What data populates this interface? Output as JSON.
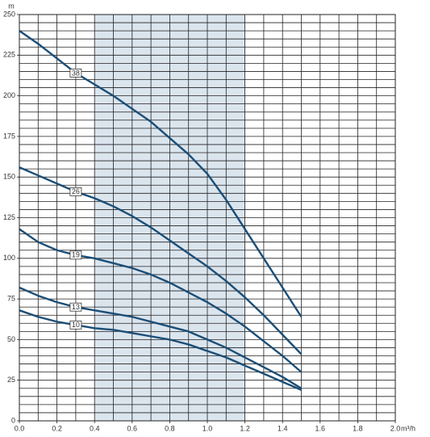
{
  "chart_data": {
    "type": "line",
    "y_unit": "m",
    "x_unit": "m³/h",
    "x": [
      0,
      0.1,
      0.2,
      0.3,
      0.4,
      0.5,
      0.6,
      0.7,
      0.8,
      0.9,
      1.0,
      1.1,
      1.2,
      1.3,
      1.4,
      1.5
    ],
    "series": [
      {
        "name": "38",
        "color": "#1b4e77",
        "values": [
          240,
          232,
          223,
          214,
          207,
          200,
          192,
          184,
          174,
          164,
          152,
          136,
          118,
          100,
          82,
          64
        ]
      },
      {
        "name": "26",
        "color": "#1b4e77",
        "values": [
          156,
          151,
          146,
          141,
          137,
          132,
          126,
          119,
          111,
          103,
          95,
          86,
          76,
          65,
          53,
          41
        ]
      },
      {
        "name": "19",
        "color": "#1b4e77",
        "values": [
          118,
          110,
          105,
          102,
          100,
          97,
          94,
          90,
          85,
          79,
          73,
          66,
          58,
          49,
          40,
          30
        ]
      },
      {
        "name": "13",
        "color": "#1b4e77",
        "values": [
          82,
          77,
          73,
          70,
          68,
          66,
          64,
          61,
          58,
          55,
          50,
          45,
          39,
          33,
          27,
          20
        ]
      },
      {
        "name": "10",
        "color": "#1b4e77",
        "values": [
          68,
          64,
          61,
          59,
          57,
          56,
          54,
          52,
          50,
          47,
          43,
          39,
          34,
          29,
          24,
          19
        ]
      }
    ],
    "xlim": [
      0,
      2.0
    ],
    "ylim": [
      0,
      250
    ],
    "xticks": [
      {
        "value": 0,
        "label": "0.0"
      },
      0.2,
      0.4,
      0.6,
      0.8,
      {
        "value": 1,
        "label": "1.0"
      },
      1.2,
      1.4,
      1.6,
      1.8,
      {
        "value": 2,
        "label": "2.0"
      }
    ],
    "yticks": [
      0,
      25,
      50,
      75,
      100,
      125,
      150,
      175,
      200,
      225,
      250
    ],
    "minor_xticks": [
      0.1,
      0.3,
      0.5,
      0.7,
      0.9,
      1.1,
      1.3,
      1.5,
      1.7,
      1.9
    ],
    "minor_yticks": [
      5,
      10,
      15,
      20,
      30,
      35,
      40,
      45,
      55,
      60,
      65,
      70,
      80,
      85,
      90,
      95,
      105,
      110,
      115,
      120,
      130,
      135,
      140,
      145,
      155,
      160,
      165,
      170,
      180,
      185,
      190,
      195,
      205,
      210,
      215,
      220,
      230,
      235,
      240,
      245
    ],
    "shaded_range": [
      0.4,
      1.2
    ],
    "shaded_color": "#dbe5ee",
    "grid": true
  }
}
